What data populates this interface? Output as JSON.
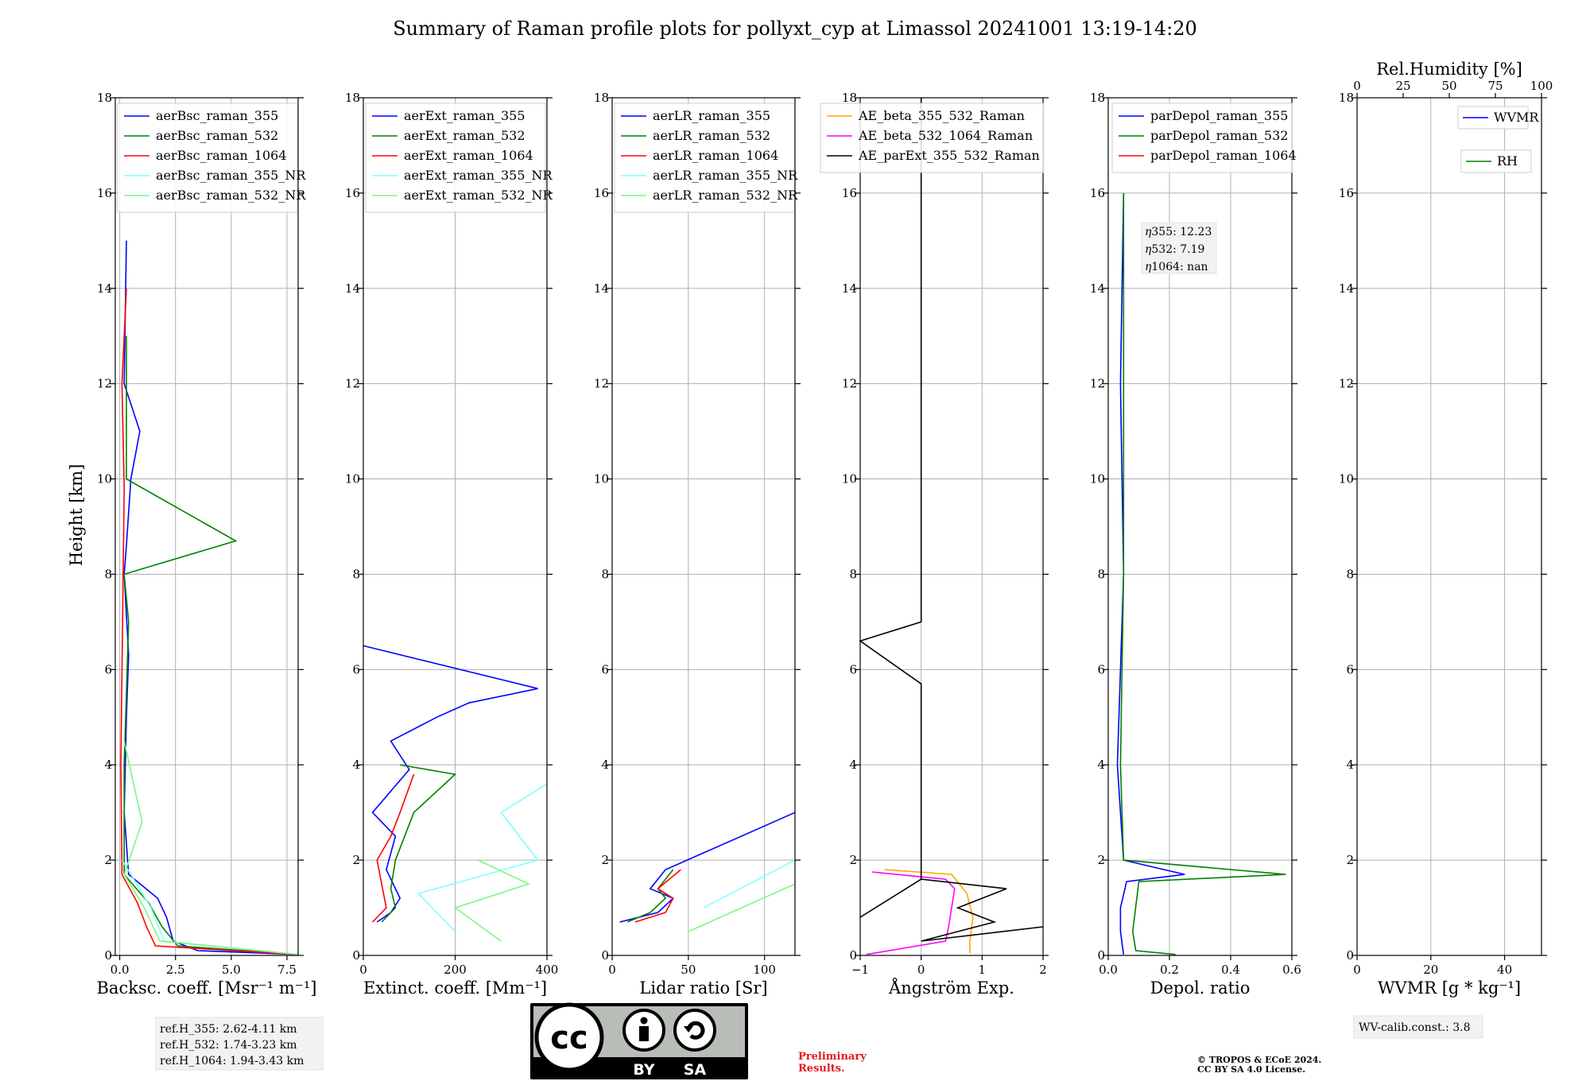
{
  "figure": {
    "title": "Summary of Raman profile plots for pollyxt_cyp at Limassol 20241001 13:19-14:20",
    "ylabel": "Height [km]",
    "yticks": [
      "0",
      "2",
      "4",
      "6",
      "8",
      "10",
      "12",
      "14",
      "16",
      "18"
    ]
  },
  "panels": [
    {
      "xlabel": "Backsc. coeff. [Msr⁻¹ m⁻¹]",
      "xticks": [
        "0.0",
        "2.5",
        "5.0",
        "7.5"
      ]
    },
    {
      "xlabel": "Extinct. coeff. [Mm⁻¹]",
      "xticks": [
        "0",
        "200",
        "400"
      ]
    },
    {
      "xlabel": "Lidar ratio [Sr]",
      "xticks": [
        "0",
        "50",
        "100"
      ]
    },
    {
      "xlabel": "Ångström Exp.",
      "xticks": [
        "−1",
        "0",
        "1",
        "2"
      ]
    },
    {
      "xlabel": "Depol. ratio",
      "xticks": [
        "0.0",
        "0.2",
        "0.4",
        "0.6"
      ]
    },
    {
      "xlabel": "WVMR [g * kg⁻¹]",
      "xticks": [
        "0",
        "20",
        "40"
      ],
      "top_label": "Rel.Humidity [%]",
      "top_ticks": [
        "0",
        "25",
        "50",
        "75",
        "100"
      ]
    }
  ],
  "legends": {
    "bsc": [
      "aerBsc_raman_355",
      "aerBsc_raman_532",
      "aerBsc_raman_1064",
      "aerBsc_raman_355_NR",
      "aerBsc_raman_532_NR"
    ],
    "ext": [
      "aerExt_raman_355",
      "aerExt_raman_532",
      "aerExt_raman_1064",
      "aerExt_raman_355_NR",
      "aerExt_raman_532_NR"
    ],
    "lr": [
      "aerLR_raman_355",
      "aerLR_raman_532",
      "aerLR_raman_1064",
      "aerLR_raman_355_NR",
      "aerLR_raman_532_NR"
    ],
    "ae": [
      "AE_beta_355_532_Raman",
      "AE_beta_532_1064_Raman",
      "AE_parExt_355_532_Raman"
    ],
    "dep": [
      "parDepol_raman_355",
      "parDepol_raman_532",
      "parDepol_raman_1064"
    ],
    "wv": [
      "WVMR",
      "RH"
    ]
  },
  "annotations": {
    "eta355_label": "η",
    "eta355": "355: 12.23",
    "eta532": "532: 7.19",
    "eta1064": "1064: nan",
    "refh": [
      "ref.H_355: 2.62-4.11 km",
      "ref.H_532: 1.74-3.23 km",
      "ref.H_1064: 1.94-3.43 km"
    ],
    "wv_calib": "WV-calib.const.: 3.8",
    "preliminary": [
      "Preliminary",
      "Results."
    ],
    "copyright": [
      "© TROPOS & ECoE 2024.",
      "CC BY SA 4.0 License."
    ],
    "cc_badge": [
      "cc",
      "BY",
      "SA"
    ]
  },
  "colors": {
    "c355": "#0000ff",
    "c532": "#008000",
    "c1064": "#ff0000",
    "c355nr": "#7fffff",
    "c532nr": "#7ff77f",
    "ae1": "#ffa500",
    "ae2": "#ff00ff",
    "ae3": "#000000"
  },
  "chart_data": [
    {
      "type": "line",
      "title": "",
      "xlabel": "Backsc. coeff. [Msr-1 m-1]",
      "ylabel": "Height [km]",
      "xlim": [
        -0.2,
        8.0
      ],
      "ylim": [
        0,
        18
      ],
      "series": [
        {
          "name": "aerBsc_raman_355",
          "x": [
            8,
            3.5,
            2.4,
            2.1,
            1.7,
            0.4,
            0.2,
            0.3,
            0.4,
            0.2,
            0.3,
            0.5,
            0.9,
            0.2,
            0.3
          ],
          "y": [
            0.02,
            0.1,
            0.3,
            0.8,
            1.2,
            1.7,
            3,
            5,
            6.3,
            8,
            8.6,
            10,
            11,
            12,
            15
          ]
        },
        {
          "name": "aerBsc_raman_532",
          "x": [
            8,
            2.6,
            1.9,
            1.3,
            0.2,
            0.2,
            0.4,
            0.2,
            5.2,
            0.3,
            0.3
          ],
          "y": [
            0.02,
            0.2,
            0.6,
            1.1,
            1.7,
            4,
            7,
            8,
            8.7,
            10,
            13
          ]
        },
        {
          "name": "aerBsc_raman_1064",
          "x": [
            8,
            1.6,
            1.2,
            0.8,
            0.1,
            0.05,
            0.2,
            0.1,
            0.3
          ],
          "y": [
            0.02,
            0.2,
            0.6,
            1.1,
            1.7,
            4,
            9.8,
            12,
            14
          ]
        },
        {
          "name": "aerBsc_raman_355_NR",
          "x": [
            8,
            2.0,
            1.4,
            0.5,
            0.1
          ],
          "y": [
            0.02,
            0.3,
            1,
            1.7,
            2
          ]
        },
        {
          "name": "aerBsc_raman_532_NR",
          "x": [
            8,
            1.8,
            1.1,
            0.2,
            1.0,
            0.2
          ],
          "y": [
            0.02,
            0.3,
            1,
            1.7,
            2.8,
            4.5
          ]
        }
      ]
    },
    {
      "type": "line",
      "title": "",
      "xlabel": "Extinct. coeff. [Mm-1]",
      "ylabel": "Height [km]",
      "xlim": [
        0,
        400
      ],
      "ylim": [
        0,
        18
      ],
      "series": [
        {
          "name": "aerExt_raman_355",
          "x": [
            30,
            60,
            80,
            50,
            70,
            20,
            100,
            60,
            160,
            230,
            380,
            0
          ],
          "y": [
            0.7,
            0.9,
            1.2,
            1.8,
            2.5,
            3,
            3.9,
            4.5,
            5,
            5.3,
            5.6,
            6.5
          ]
        },
        {
          "name": "aerExt_raman_532",
          "x": [
            40,
            70,
            60,
            70,
            90,
            110,
            200,
            80
          ],
          "y": [
            0.7,
            1.0,
            1.4,
            2,
            2.5,
            3,
            3.8,
            4
          ]
        },
        {
          "name": "aerExt_raman_1064",
          "x": [
            20,
            50,
            40,
            30,
            60,
            80,
            110
          ],
          "y": [
            0.7,
            1.0,
            1.5,
            2,
            2.5,
            3,
            3.8
          ]
        },
        {
          "name": "aerExt_raman_355_NR",
          "x": [
            200,
            120,
            380,
            300,
            400
          ],
          "y": [
            0.5,
            1.3,
            2,
            3,
            3.6
          ]
        },
        {
          "name": "aerExt_raman_532_NR",
          "x": [
            300,
            200,
            360,
            250
          ],
          "y": [
            0.3,
            1,
            1.5,
            2
          ]
        }
      ]
    },
    {
      "type": "line",
      "title": "",
      "xlabel": "Lidar ratio [Sr]",
      "ylabel": "Height [km]",
      "xlim": [
        0,
        120
      ],
      "ylim": [
        0,
        18
      ],
      "series": [
        {
          "name": "aerLR_raman_355",
          "x": [
            5,
            30,
            40,
            25,
            35,
            120
          ],
          "y": [
            0.7,
            0.9,
            1.2,
            1.4,
            1.8,
            3
          ]
        },
        {
          "name": "aerLR_raman_532",
          "x": [
            10,
            25,
            35,
            30,
            40
          ],
          "y": [
            0.7,
            0.9,
            1.2,
            1.4,
            1.8
          ]
        },
        {
          "name": "aerLR_raman_1064",
          "x": [
            15,
            35,
            40,
            30,
            45
          ],
          "y": [
            0.7,
            0.9,
            1.2,
            1.4,
            1.8
          ]
        },
        {
          "name": "aerLR_raman_355_NR",
          "x": [
            60,
            120
          ],
          "y": [
            1,
            2
          ]
        },
        {
          "name": "aerLR_raman_532_NR",
          "x": [
            50,
            120
          ],
          "y": [
            0.5,
            1.5
          ]
        }
      ]
    },
    {
      "type": "line",
      "title": "",
      "xlabel": "Angstrom Exp.",
      "ylabel": "Height [km]",
      "xlim": [
        -1,
        2
      ],
      "ylim": [
        0,
        18
      ],
      "series": [
        {
          "name": "AE_beta_355_532_Raman",
          "x": [
            0.8,
            0.8,
            0.85,
            0.75,
            0.5,
            -0.6
          ],
          "y": [
            0.05,
            0.3,
            0.8,
            1.3,
            1.7,
            1.8
          ]
        },
        {
          "name": "AE_beta_532_1064_Raman",
          "x": [
            -0.9,
            0.4,
            0.45,
            0.5,
            0.55,
            0.4,
            -0.8
          ],
          "y": [
            0.02,
            0.3,
            0.6,
            1.0,
            1.4,
            1.6,
            1.75
          ]
        },
        {
          "name": "AE_parExt_355_532_Raman",
          "x": [
            2,
            0,
            1.2,
            0.6,
            1.4,
            0.0,
            -1,
            0,
            0,
            -1,
            0,
            0
          ],
          "y": [
            0.6,
            0.3,
            0.7,
            1,
            1.4,
            1.6,
            0.8,
            1.6,
            5.7,
            6.6,
            7,
            18
          ]
        }
      ]
    },
    {
      "type": "line",
      "title": "",
      "xlabel": "Depol. ratio",
      "ylabel": "Height [km]",
      "xlim": [
        0,
        0.6
      ],
      "ylim": [
        0,
        18
      ],
      "series": [
        {
          "name": "parDepol_raman_355",
          "x": [
            0.05,
            0.04,
            0.04,
            0.06,
            0.25,
            0.05,
            0.03,
            0.05,
            0.04,
            0.05
          ],
          "y": [
            0.02,
            0.5,
            1.0,
            1.55,
            1.7,
            2,
            4,
            8,
            12,
            16
          ]
        },
        {
          "name": "parDepol_raman_532",
          "x": [
            0.22,
            0.09,
            0.08,
            0.1,
            0.58,
            0.05,
            0.04,
            0.05,
            0.05,
            0.05
          ],
          "y": [
            0.02,
            0.1,
            0.5,
            1.55,
            1.7,
            2,
            4,
            8,
            12,
            16
          ]
        },
        {
          "name": "parDepol_raman_1064",
          "x": [],
          "y": []
        }
      ]
    },
    {
      "type": "line",
      "title": "",
      "xlabel": "WVMR [g*kg-1]",
      "ylabel": "Height [km]",
      "xlim": [
        0,
        50
      ],
      "ylim": [
        0,
        18
      ],
      "x2label": "Rel.Humidity [%]",
      "x2lim": [
        0,
        100
      ],
      "series": [
        {
          "name": "WVMR",
          "x": [],
          "y": []
        },
        {
          "name": "RH",
          "x": [],
          "y": []
        }
      ]
    }
  ]
}
